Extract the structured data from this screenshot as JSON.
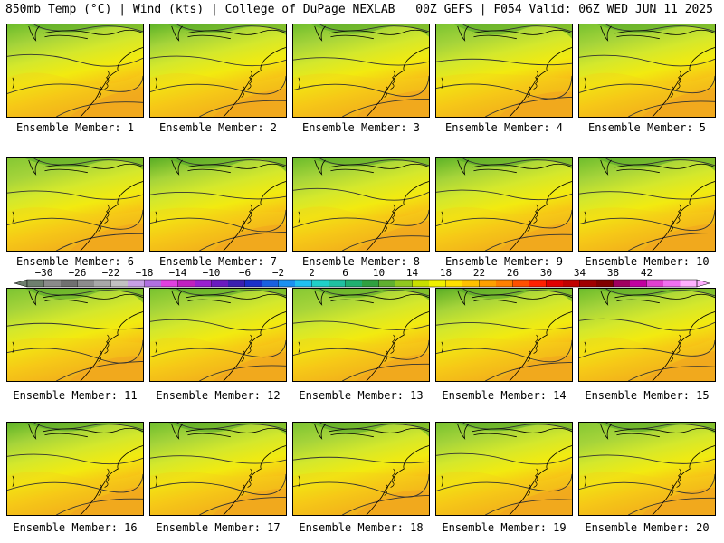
{
  "header": {
    "left": "850mb Temp (°C) | Wind (kts) | College of DuPage NEXLAB",
    "right": "00Z GEFS | F054 Valid: 06Z WED JUN 11 2025"
  },
  "panels": [
    {
      "label": "Ensemble Member: 1"
    },
    {
      "label": "Ensemble Member: 2"
    },
    {
      "label": "Ensemble Member: 3"
    },
    {
      "label": "Ensemble Member: 4"
    },
    {
      "label": "Ensemble Member: 5"
    },
    {
      "label": "Ensemble Member: 6"
    },
    {
      "label": "Ensemble Member: 7"
    },
    {
      "label": "Ensemble Member: 8"
    },
    {
      "label": "Ensemble Member: 9"
    },
    {
      "label": "Ensemble Member: 10"
    },
    {
      "label": "Ensemble Member: 11"
    },
    {
      "label": "Ensemble Member: 12"
    },
    {
      "label": "Ensemble Member: 13"
    },
    {
      "label": "Ensemble Member: 14"
    },
    {
      "label": "Ensemble Member: 15"
    },
    {
      "label": "Ensemble Member: 16"
    },
    {
      "label": "Ensemble Member: 17"
    },
    {
      "label": "Ensemble Member: 18"
    },
    {
      "label": "Ensemble Member: 19"
    },
    {
      "label": "Ensemble Member: 20"
    }
  ],
  "colorbar": {
    "ticks": [
      "−30",
      "−26",
      "−22",
      "−18",
      "−14",
      "−10",
      "−6",
      "−2",
      "2",
      "6",
      "10",
      "14",
      "18",
      "22",
      "26",
      "30",
      "34",
      "38",
      "42"
    ],
    "colors": [
      "#6e7f6e",
      "#8a8a8a",
      "#707070",
      "#8c8c8c",
      "#a8a8a8",
      "#c2c2c2",
      "#c8a0e6",
      "#b070e0",
      "#e040e0",
      "#c020c0",
      "#9a20d0",
      "#6a1ac0",
      "#3a20b0",
      "#1a30c8",
      "#1a60e0",
      "#1a90f0",
      "#20c0f0",
      "#20d0c8",
      "#20c0a0",
      "#20b070",
      "#30a040",
      "#60b030",
      "#90c820",
      "#c8e000",
      "#f0f000",
      "#ffe000",
      "#ffc000",
      "#ffa000",
      "#ff8000",
      "#ff5000",
      "#ff2000",
      "#e00000",
      "#c00000",
      "#a00000",
      "#800000",
      "#a00060",
      "#c000a0",
      "#e040d0",
      "#f070f0",
      "#ffb0ff"
    ]
  }
}
